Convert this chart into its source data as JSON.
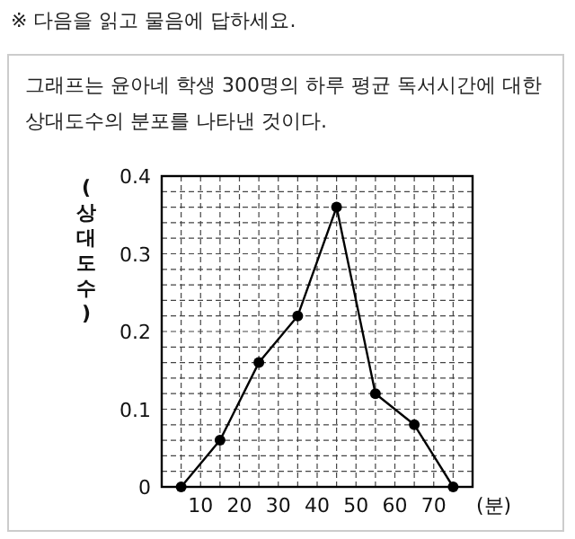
{
  "chart_data": {
    "type": "line",
    "annotations": [
      "※ 다음을 읽고 물음에 답하세요."
    ],
    "title": "그래프는 윤아네 학생 300명의 하루 평균 독서시간에 대한 상대도수의 분포를 나타낸 것이다.",
    "xlabel": "(분)",
    "ylabel": "(상대도수)",
    "x": [
      5,
      15,
      25,
      35,
      45,
      55,
      65,
      75
    ],
    "values": [
      0,
      0.06,
      0.16,
      0.22,
      0.36,
      0.12,
      0.08,
      0
    ],
    "color": "#000000",
    "marker": "circle",
    "line_style": "solid",
    "grid": true,
    "xlim": [
      0,
      80
    ],
    "ylim": [
      0,
      0.4
    ],
    "xticks": [
      {
        "value": 5,
        "label": null
      },
      10,
      {
        "value": 15,
        "label": null
      },
      20,
      {
        "value": 25,
        "label": null
      },
      30,
      {
        "value": 35,
        "label": null
      },
      40,
      {
        "value": 45,
        "label": null
      },
      50,
      {
        "value": 55,
        "label": null
      },
      60,
      {
        "value": 65,
        "label": null
      },
      70,
      {
        "value": 75,
        "label": null
      }
    ],
    "yticks": [
      0,
      {
        "value": 0.02,
        "label": null
      },
      {
        "value": 0.04,
        "label": null
      },
      {
        "value": 0.06,
        "label": null
      },
      {
        "value": 0.08,
        "label": null
      },
      {
        "value": 0.1,
        "label": "0.1"
      },
      {
        "value": 0.12,
        "label": null
      },
      {
        "value": 0.14,
        "label": null
      },
      {
        "value": 0.16,
        "label": null
      },
      {
        "value": 0.18,
        "label": null
      },
      {
        "value": 0.2,
        "label": "0.2"
      },
      {
        "value": 0.22,
        "label": null
      },
      {
        "value": 0.24,
        "label": null
      },
      {
        "value": 0.26,
        "label": null
      },
      {
        "value": 0.28,
        "label": null
      },
      {
        "value": 0.3,
        "label": "0.3"
      },
      {
        "value": 0.32,
        "label": null
      },
      {
        "value": 0.34,
        "label": null
      },
      {
        "value": 0.36,
        "label": null
      },
      {
        "value": 0.38,
        "label": null
      },
      {
        "value": 0.4,
        "label": "0.4"
      }
    ]
  }
}
